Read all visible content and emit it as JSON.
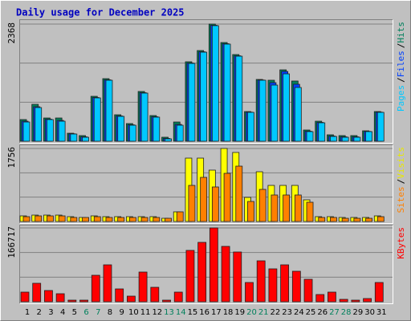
{
  "chart_data": [
    {
      "type": "bar",
      "title": "Daily usage for December 2025",
      "categories": [
        "1",
        "2",
        "3",
        "4",
        "5",
        "6",
        "7",
        "8",
        "9",
        "10",
        "11",
        "12",
        "13",
        "14",
        "15",
        "16",
        "17",
        "18",
        "19",
        "20",
        "21",
        "22",
        "23",
        "24",
        "25",
        "26",
        "27",
        "28",
        "29",
        "30",
        "31"
      ],
      "category_colors": [
        "#000000",
        "#000000",
        "#000000",
        "#000000",
        "#000000",
        "#00805c",
        "#00805c",
        "#000000",
        "#000000",
        "#000000",
        "#000000",
        "#000000",
        "#00805c",
        "#00805c",
        "#000000",
        "#000000",
        "#000000",
        "#000000",
        "#000000",
        "#00805c",
        "#00805c",
        "#000000",
        "#000000",
        "#000000",
        "#000000",
        "#000000",
        "#00805c",
        "#00805c",
        "#000000",
        "#000000",
        "#000000"
      ],
      "legend_separator": "/",
      "ylim": [
        0,
        2368
      ],
      "yticks": [
        2368
      ],
      "grid": true,
      "series": [
        {
          "name": "Hits",
          "color": "#00805c",
          "values": [
            438,
            746,
            470,
            470,
            162,
            114,
            908,
            1265,
            535,
            357,
            1006,
            519,
            81,
            389,
            1606,
            1833,
            2368,
            1995,
            1752,
            600,
            1249,
            1233,
            1443,
            1217,
            227,
            405,
            130,
            114,
            114,
            211,
            600
          ]
        },
        {
          "name": "Files",
          "color": "#0040ff",
          "values": [
            405,
            697,
            446,
            421,
            150,
            89,
            884,
            1241,
            511,
            332,
            981,
            495,
            57,
            340,
            1581,
            1808,
            2344,
            1971,
            1727,
            588,
            1237,
            1184,
            1411,
            1152,
            203,
            381,
            105,
            89,
            89,
            199,
            588
          ]
        },
        {
          "name": "Pages",
          "color": "#00c8ff",
          "values": [
            389,
            681,
            438,
            405,
            146,
            81,
            876,
            1233,
            503,
            324,
            973,
            487,
            49,
            324,
            1573,
            1800,
            2336,
            1963,
            1719,
            584,
            1233,
            1135,
            1362,
            1087,
            195,
            373,
            97,
            81,
            81,
            195,
            584
          ]
        }
      ]
    },
    {
      "type": "bar",
      "ylim": [
        0,
        1756
      ],
      "yticks": [
        1756
      ],
      "grid": true,
      "series": [
        {
          "name": "Visits",
          "color": "#ffff00",
          "values": [
            135,
            154,
            154,
            154,
            116,
            97,
            135,
            116,
            116,
            116,
            116,
            116,
            77,
            232,
            1524,
            1524,
            1235,
            1756,
            1660,
            579,
            1196,
            868,
            868,
            868,
            521,
            116,
            116,
            97,
            97,
            97,
            135
          ]
        },
        {
          "name": "Sites",
          "color": "#ff8000",
          "values": [
            116,
            135,
            135,
            135,
            97,
            97,
            116,
            97,
            97,
            97,
            97,
            97,
            77,
            232,
            868,
            1061,
            830,
            1158,
            1331,
            482,
            772,
            637,
            637,
            637,
            463,
            97,
            97,
            77,
            77,
            77,
            116
          ]
        }
      ]
    },
    {
      "type": "bar",
      "ylim": [
        0,
        166717
      ],
      "yticks": [
        166717
      ],
      "grid": true,
      "series": [
        {
          "name": "KBytes",
          "color": "#ff0000",
          "values": [
            21746,
            41680,
            25369,
            18120,
            3624,
            3624,
            59800,
            83360,
            28990,
            12685,
            67050,
            32620,
            3624,
            21746,
            115980,
            134100,
            166717,
            125040,
            112355,
            43490,
            92420,
            74300,
            83360,
            68860,
            50740,
            16310,
            21746,
            5437,
            3624,
            7249,
            43490
          ]
        }
      ]
    }
  ]
}
